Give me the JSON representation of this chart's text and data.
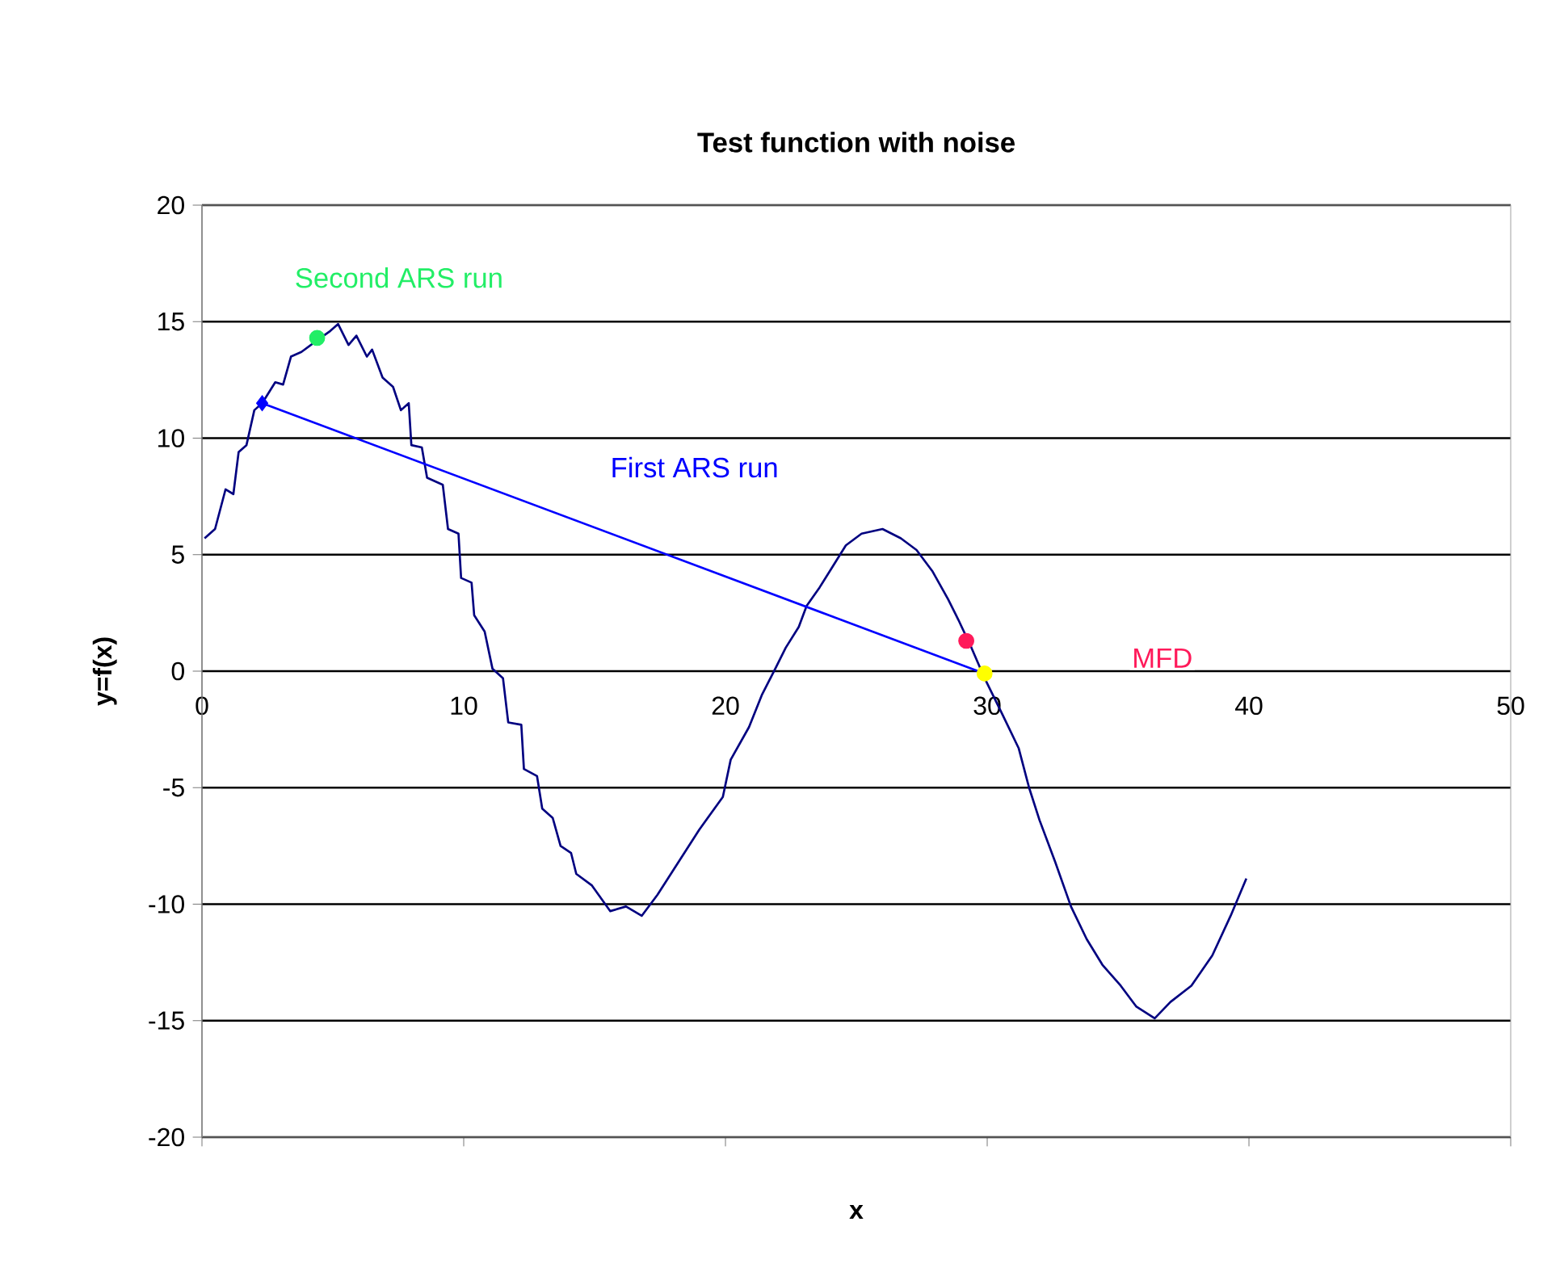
{
  "chart_data": {
    "type": "line",
    "title": "Test function with noise",
    "xlabel": "x",
    "ylabel": "y=f(x)",
    "xlim": [
      0,
      50
    ],
    "xticks": [
      0,
      10,
      20,
      30,
      40,
      50
    ],
    "ylim": [
      -20,
      20
    ],
    "yticks": [
      -20,
      -15,
      -10,
      -5,
      0,
      5,
      10,
      15,
      20
    ],
    "grid": "y",
    "line_style": "solid",
    "series": [
      {
        "color": "#000080",
        "marker": "none",
        "x": [
          0.1,
          0.5,
          0.9,
          1.2,
          1.4,
          1.7,
          2.0,
          2.3,
          2.8,
          3.1,
          3.4,
          3.8,
          4.4,
          4.9,
          5.2,
          5.6,
          5.9,
          6.3,
          6.5,
          6.9,
          7.3,
          7.6,
          7.9,
          8.0,
          8.4,
          8.6,
          9.2,
          9.4,
          9.8,
          9.9,
          10.3,
          10.4,
          10.8,
          11.1,
          11.5,
          11.7,
          12.2,
          12.3,
          12.8,
          13.0,
          13.4,
          13.7,
          14.1,
          14.3,
          14.9,
          15.6,
          16.2,
          16.8,
          17.4,
          18.2,
          19.0,
          19.9,
          20.2,
          20.9,
          21.4,
          21.9,
          22.3,
          22.8,
          23.1,
          23.6,
          24.1,
          24.6,
          25.2,
          26.0,
          26.7,
          27.3,
          27.9,
          28.5,
          28.9,
          29.4,
          29.9,
          30.6,
          31.2,
          31.6,
          32.0,
          32.6,
          33.2,
          33.8,
          34.4,
          35.1,
          35.7,
          36.4,
          37.0,
          37.8,
          38.6,
          39.3,
          39.9
        ],
        "values": [
          5.7,
          6.1,
          7.8,
          7.6,
          9.4,
          9.7,
          11.2,
          11.5,
          12.4,
          12.3,
          13.5,
          13.7,
          14.2,
          14.6,
          14.9,
          14.0,
          14.4,
          13.5,
          13.8,
          12.6,
          12.2,
          11.2,
          11.5,
          9.7,
          9.6,
          8.3,
          8.0,
          6.1,
          5.9,
          4.0,
          3.8,
          2.4,
          1.7,
          0.1,
          -0.3,
          -2.2,
          -2.3,
          -4.2,
          -4.5,
          -5.9,
          -6.3,
          -7.5,
          -7.8,
          -8.7,
          -9.2,
          -10.3,
          -10.1,
          -10.5,
          -9.6,
          -8.2,
          -6.8,
          -5.4,
          -3.8,
          -2.4,
          -1.0,
          0.1,
          1.0,
          1.9,
          2.8,
          3.6,
          4.5,
          5.4,
          5.9,
          6.1,
          5.7,
          5.2,
          4.3,
          3.1,
          2.2,
          1.0,
          -0.3,
          -1.9,
          -3.3,
          -5.0,
          -6.4,
          -8.2,
          -10.1,
          -11.5,
          -12.6,
          -13.5,
          -14.4,
          -14.9,
          -14.2,
          -13.5,
          -12.2,
          -10.5,
          -8.9
        ]
      },
      {
        "type": "line",
        "name": "First ARS run",
        "color": "#0000ff",
        "marker": "none",
        "x": [
          2.3,
          29.9
        ],
        "values": [
          11.5,
          -0.1
        ]
      },
      {
        "type": "scatter",
        "color": "#0000ff",
        "marker": "diamond",
        "x": [
          2.3
        ],
        "values": [
          11.5
        ]
      },
      {
        "type": "scatter",
        "name": "Second ARS run",
        "color": "#22ee66",
        "marker": "circle",
        "x": [
          4.4
        ],
        "values": [
          14.3
        ]
      },
      {
        "type": "scatter",
        "name": "MFD",
        "color": "#ff1a5a",
        "marker": "circle",
        "x": [
          29.2
        ],
        "values": [
          1.3
        ]
      },
      {
        "type": "scatter",
        "color": "#ffff00",
        "marker": "circle",
        "x": [
          29.9
        ],
        "values": [
          -0.1
        ]
      }
    ]
  }
}
